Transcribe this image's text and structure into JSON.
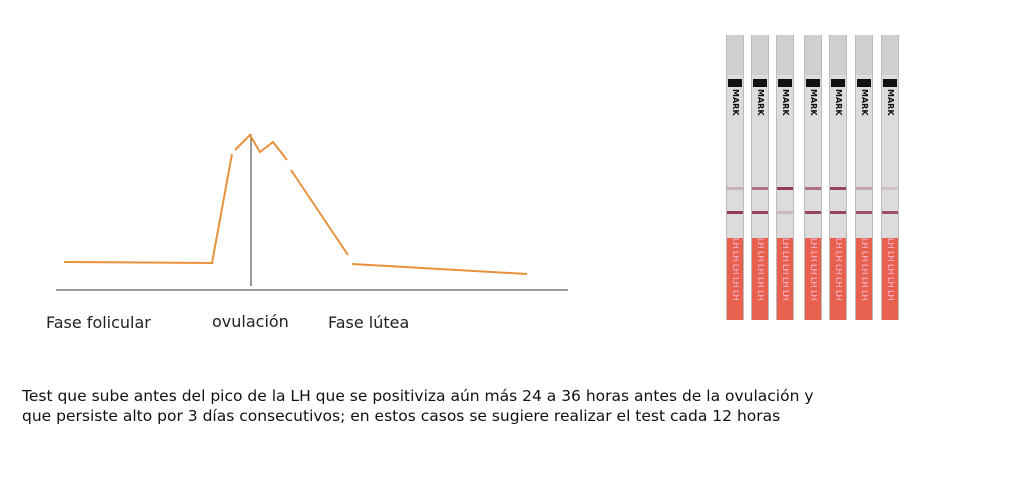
{
  "curve": {
    "color": "#e8913d",
    "labels": {
      "follicular": "Fase folicular",
      "ovulation": "ovulación",
      "luteal": "Fase lútea"
    }
  },
  "strips": {
    "mark_text": "MARK",
    "brand_text": "LH LH LH LH LH",
    "test_line_intensity": [
      0.25,
      0.6,
      0.9,
      0.6,
      0.85,
      0.3,
      0.15
    ],
    "control_line_intensity": [
      0.9,
      0.85,
      0.2,
      0.85,
      0.85,
      0.8,
      0.8
    ]
  },
  "caption": {
    "line1": "Test que sube antes del pico de la LH que se positiviza aún más 24 a 36 horas antes de la ovulación y",
    "line2": "que persiste alto por 3 días consecutivos; en estos casos se sugiere realizar el test cada 12 horas"
  }
}
